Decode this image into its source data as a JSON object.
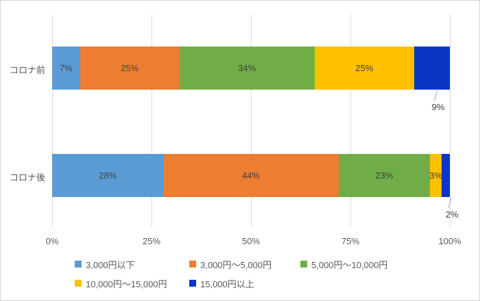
{
  "chart_data": {
    "type": "bar",
    "variant": "horizontal-stacked",
    "title": "",
    "categories": [
      "コロナ前",
      "コロナ後"
    ],
    "series": [
      {
        "name": "3,000円以下",
        "color": "#5B9BD5",
        "values": [
          7,
          28
        ]
      },
      {
        "name": "3,000円～5,000円",
        "color": "#ED7D31",
        "values": [
          25,
          44
        ]
      },
      {
        "name": "5,000円～10,000円",
        "color": "#70AD47",
        "values": [
          34,
          23
        ]
      },
      {
        "name": "10,000円～15,000円",
        "color": "#FFC000",
        "values": [
          25,
          3
        ]
      },
      {
        "name": "15,000円以上",
        "color": "#0A36C6",
        "values": [
          9,
          2
        ],
        "label_outside": true
      }
    ],
    "x_ticks": [
      "0%",
      "25%",
      "50%",
      "75%",
      "100%"
    ],
    "xlim": [
      0,
      100
    ],
    "grid": true,
    "legend_position": "bottom",
    "data_label_suffix": "%"
  },
  "colors": {
    "background": "#FFFFFF",
    "frame_border": "#D2D2D2",
    "gridline": "#D9D9D9",
    "axis_text": "#595959",
    "data_label_text": "#404040",
    "leader_line": "#A6A6A6"
  }
}
